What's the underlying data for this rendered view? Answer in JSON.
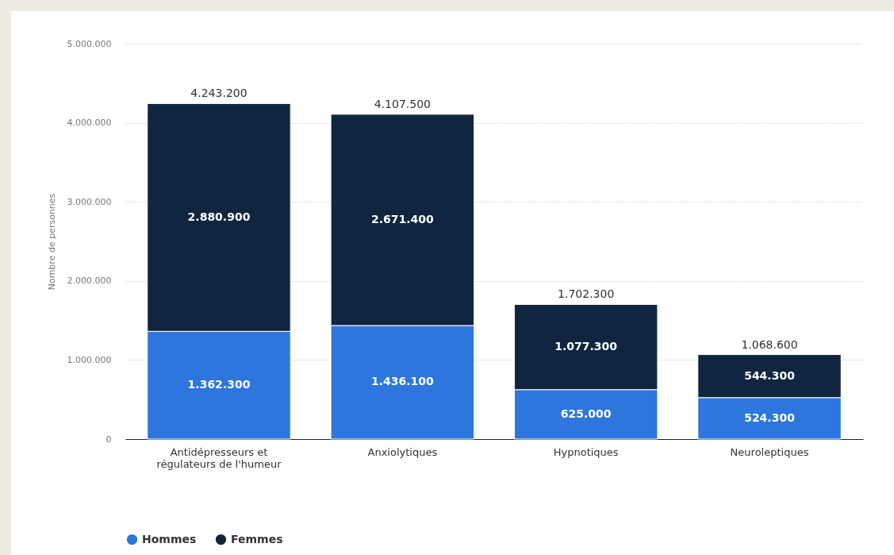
{
  "chart_data": {
    "type": "bar",
    "stacked": true,
    "ylabel": "Nombre de personnes",
    "categories": [
      "Antidépresseurs et régulateurs de l'humeur",
      "Anxiolytiques",
      "Hypnotiques",
      "Neuroleptiques"
    ],
    "series": [
      {
        "name": "Hommes",
        "color": "#2d76dd",
        "values": [
          1362300,
          1436100,
          625000,
          524300
        ],
        "value_labels": [
          "1.362.300",
          "1.436.100",
          "625.000",
          "524.300"
        ]
      },
      {
        "name": "Femmes",
        "color": "#10253f",
        "values": [
          2880900,
          2671400,
          1077300,
          544300
        ],
        "value_labels": [
          "2.880.900",
          "2.671.400",
          "1.077.300",
          "544.300"
        ]
      }
    ],
    "totals": [
      "4.243.200",
      "4.107.500",
      "1.702.300",
      "1.068.600"
    ],
    "ylim": [
      0,
      5000000
    ],
    "yticks": [
      {
        "value": 0,
        "label": "0"
      },
      {
        "value": 1000000,
        "label": "1.000.000"
      },
      {
        "value": 2000000,
        "label": "2.000.000"
      },
      {
        "value": 3000000,
        "label": "3.000.000"
      },
      {
        "value": 4000000,
        "label": "4.000.000"
      },
      {
        "value": 5000000,
        "label": "5.000.000"
      }
    ],
    "grid": "y",
    "legend": "bottom"
  }
}
